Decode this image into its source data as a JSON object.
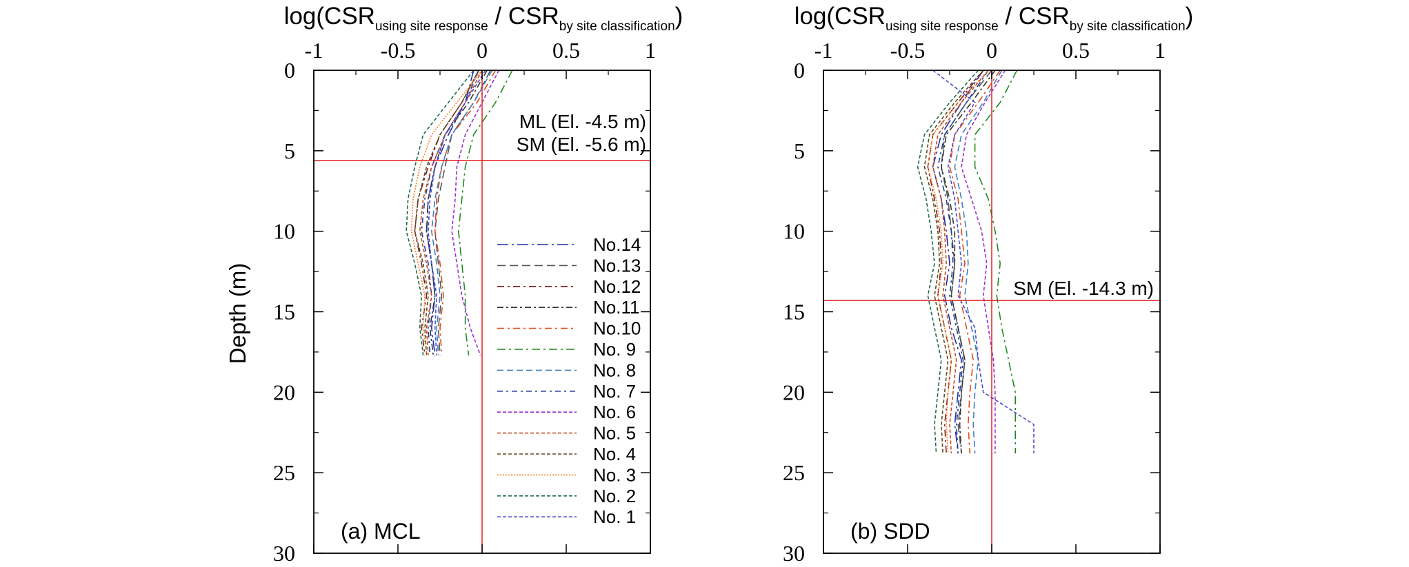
{
  "figure": {
    "ylabel": "Depth (m)",
    "title_parts": {
      "prefix": "log(CSR",
      "sub1": "using site response",
      "middle": " / CSR",
      "sub2": "by site classification",
      "suffix": ")"
    }
  },
  "series_styles": [
    {
      "name": "No.14",
      "color": "#1f2fa8",
      "dash": "16 5 3 5"
    },
    {
      "name": "No.13",
      "color": "#555555",
      "dash": "12 6"
    },
    {
      "name": "No.12",
      "color": "#7a1f1f",
      "dash": "10 5 3 5"
    },
    {
      "name": "No.11",
      "color": "#333333",
      "dash": "9 4 3 4"
    },
    {
      "name": "No.10",
      "color": "#e04a1a",
      "dash": "10 5 3 5"
    },
    {
      "name": "No. 9",
      "color": "#1f8a1f",
      "dash": "12 5 3 5"
    },
    {
      "name": "No. 8",
      "color": "#3f80c0",
      "dash": "9 5"
    },
    {
      "name": "No. 7",
      "color": "#1f3f9a",
      "dash": "8 5 3 5"
    },
    {
      "name": "No. 6",
      "color": "#9a2fd0",
      "dash": "5 3"
    },
    {
      "name": "No. 5",
      "color": "#c84a1f",
      "dash": "5 3"
    },
    {
      "name": "No. 4",
      "color": "#5a4a1f",
      "dash": "5 3"
    },
    {
      "name": "No. 3",
      "color": "#ff7a1f",
      "dash": "2 2"
    },
    {
      "name": "No. 2",
      "color": "#1f6a4a",
      "dash": "5 3"
    },
    {
      "name": "No. 1",
      "color": "#4a4ad0",
      "dash": "5 3"
    }
  ],
  "chart_data": [
    {
      "type": "line",
      "panel_label": "(a) MCL",
      "x_tick_labels": [
        "-1",
        "-0.5",
        "0",
        "0.5",
        "1"
      ],
      "y_tick_labels": [
        "0",
        "5",
        "10",
        "15",
        "20",
        "25",
        "30"
      ],
      "xlim": [
        -1,
        1
      ],
      "ylim": [
        0,
        30
      ],
      "y_inverted": true,
      "legend": [
        "No.14",
        "No.13",
        "No.12",
        "No.11",
        "No.10",
        "No. 9",
        "No. 8",
        "No. 7",
        "No. 6",
        "No. 5",
        "No. 4",
        "No. 3",
        "No. 2",
        "No. 1"
      ],
      "legend_position": "lower-right",
      "reference_lines": [
        {
          "type": "vertical",
          "x": 0
        },
        {
          "type": "horizontal",
          "y": 5.6
        }
      ],
      "annotations": [
        "ML (El. -4.5 m)",
        "SM (El. -5.6 m)"
      ],
      "depth": [
        0,
        2,
        4,
        6,
        8,
        10,
        12,
        14,
        16,
        17.7
      ],
      "series": [
        {
          "name": "No.14",
          "values": [
            -0.05,
            -0.1,
            -0.2,
            -0.28,
            -0.32,
            -0.33,
            -0.3,
            -0.28,
            -0.3,
            -0.28
          ]
        },
        {
          "name": "No.13",
          "values": [
            0.05,
            -0.05,
            -0.18,
            -0.22,
            -0.26,
            -0.28,
            -0.26,
            -0.24,
            -0.26,
            -0.25
          ]
        },
        {
          "name": "No.12",
          "values": [
            -0.02,
            -0.12,
            -0.25,
            -0.32,
            -0.38,
            -0.4,
            -0.36,
            -0.33,
            -0.36,
            -0.34
          ]
        },
        {
          "name": "No.11",
          "values": [
            0.03,
            -0.08,
            -0.22,
            -0.28,
            -0.32,
            -0.33,
            -0.3,
            -0.28,
            -0.31,
            -0.29
          ]
        },
        {
          "name": "No.10",
          "values": [
            0.08,
            -0.03,
            -0.18,
            -0.24,
            -0.27,
            -0.28,
            -0.25,
            -0.23,
            -0.25,
            -0.24
          ]
        },
        {
          "name": "No. 9",
          "values": [
            0.18,
            0.08,
            -0.05,
            -0.1,
            -0.12,
            -0.14,
            -0.12,
            -0.1,
            -0.1,
            -0.08
          ]
        },
        {
          "name": "No. 8",
          "values": [
            0.06,
            -0.05,
            -0.18,
            -0.24,
            -0.28,
            -0.3,
            -0.27,
            -0.25,
            -0.27,
            -0.26
          ]
        },
        {
          "name": "No. 7",
          "values": [
            -0.02,
            -0.1,
            -0.22,
            -0.3,
            -0.34,
            -0.36,
            -0.32,
            -0.3,
            -0.32,
            -0.31
          ]
        },
        {
          "name": "No. 6",
          "values": [
            0.1,
            0.0,
            -0.1,
            -0.15,
            -0.16,
            -0.18,
            -0.15,
            -0.12,
            -0.07,
            -0.01
          ]
        },
        {
          "name": "No. 5",
          "values": [
            0.0,
            -0.1,
            -0.22,
            -0.3,
            -0.35,
            -0.37,
            -0.33,
            -0.3,
            -0.33,
            -0.32
          ]
        },
        {
          "name": "No. 4",
          "values": [
            -0.02,
            -0.12,
            -0.25,
            -0.33,
            -0.38,
            -0.4,
            -0.35,
            -0.32,
            -0.34,
            -0.33
          ]
        },
        {
          "name": "No. 3",
          "values": [
            0.0,
            -0.15,
            -0.3,
            -0.37,
            -0.41,
            -0.42,
            -0.38,
            -0.34,
            -0.35,
            -0.33
          ]
        },
        {
          "name": "No. 2",
          "values": [
            -0.05,
            -0.2,
            -0.35,
            -0.4,
            -0.44,
            -0.45,
            -0.4,
            -0.36,
            -0.37,
            -0.35
          ]
        },
        {
          "name": "No. 1",
          "values": [
            0.02,
            -0.1,
            -0.22,
            -0.28,
            -0.31,
            -0.32,
            -0.3,
            -0.27,
            -0.28,
            -0.27
          ]
        }
      ]
    },
    {
      "type": "line",
      "panel_label": "(b) SDD",
      "x_tick_labels": [
        "-1",
        "-0.5",
        "0",
        "0.5",
        "1"
      ],
      "y_tick_labels": [
        "0",
        "5",
        "10",
        "15",
        "20",
        "25",
        "30"
      ],
      "xlim": [
        -1,
        1
      ],
      "ylim": [
        0,
        30
      ],
      "y_inverted": true,
      "reference_lines": [
        {
          "type": "vertical",
          "x": 0
        },
        {
          "type": "horizontal",
          "y": 14.3
        }
      ],
      "annotations": [
        "SM (El. -14.3 m)"
      ],
      "depth": [
        0,
        2,
        4,
        6,
        8,
        10,
        12,
        14,
        16,
        18,
        20,
        22,
        23.8
      ],
      "series": [
        {
          "name": "No.14",
          "values": [
            -0.05,
            -0.18,
            -0.3,
            -0.35,
            -0.3,
            -0.27,
            -0.25,
            -0.28,
            -0.24,
            -0.18,
            -0.2,
            -0.22,
            -0.2
          ]
        },
        {
          "name": "No.13",
          "values": [
            0.0,
            -0.15,
            -0.28,
            -0.3,
            -0.26,
            -0.24,
            -0.22,
            -0.24,
            -0.2,
            -0.16,
            -0.18,
            -0.2,
            -0.18
          ]
        },
        {
          "name": "No.12",
          "values": [
            -0.05,
            -0.2,
            -0.35,
            -0.38,
            -0.34,
            -0.31,
            -0.3,
            -0.32,
            -0.28,
            -0.24,
            -0.26,
            -0.28,
            -0.27
          ]
        },
        {
          "name": "No.11",
          "values": [
            0.02,
            -0.12,
            -0.27,
            -0.3,
            -0.25,
            -0.22,
            -0.22,
            -0.24,
            -0.2,
            -0.16,
            -0.18,
            -0.19,
            -0.18
          ]
        },
        {
          "name": "No.10",
          "values": [
            0.05,
            -0.08,
            -0.22,
            -0.25,
            -0.2,
            -0.18,
            -0.16,
            -0.19,
            -0.15,
            -0.11,
            -0.13,
            -0.14,
            -0.13
          ]
        },
        {
          "name": "No. 9",
          "values": [
            0.15,
            0.05,
            -0.1,
            -0.1,
            -0.02,
            0.02,
            0.05,
            0.03,
            0.06,
            0.1,
            0.14,
            0.14,
            0.14
          ]
        },
        {
          "name": "No. 8",
          "values": [
            0.06,
            -0.05,
            -0.18,
            -0.22,
            -0.18,
            -0.15,
            -0.14,
            -0.16,
            -0.12,
            -0.08,
            -0.1,
            -0.11,
            -0.1
          ]
        },
        {
          "name": "No. 7",
          "values": [
            -0.02,
            -0.15,
            -0.28,
            -0.32,
            -0.27,
            -0.24,
            -0.23,
            -0.25,
            -0.21,
            -0.17,
            -0.19,
            -0.21,
            -0.2
          ]
        },
        {
          "name": "No. 6",
          "values": [
            0.08,
            -0.04,
            -0.15,
            -0.18,
            -0.12,
            -0.06,
            -0.03,
            -0.05,
            -0.02,
            0.01,
            0.02,
            0.02,
            0.02
          ]
        },
        {
          "name": "No. 5",
          "values": [
            -0.02,
            -0.18,
            -0.32,
            -0.35,
            -0.3,
            -0.28,
            -0.27,
            -0.29,
            -0.25,
            -0.21,
            -0.23,
            -0.25,
            -0.24
          ]
        },
        {
          "name": "No. 4",
          "values": [
            -0.05,
            -0.22,
            -0.37,
            -0.4,
            -0.35,
            -0.32,
            -0.31,
            -0.34,
            -0.3,
            -0.26,
            -0.28,
            -0.3,
            -0.29
          ]
        },
        {
          "name": "No. 3",
          "values": [
            -0.02,
            -0.2,
            -0.35,
            -0.38,
            -0.33,
            -0.3,
            -0.29,
            -0.32,
            -0.28,
            -0.24,
            -0.26,
            -0.27,
            -0.26
          ]
        },
        {
          "name": "No. 2",
          "values": [
            -0.08,
            -0.25,
            -0.4,
            -0.44,
            -0.39,
            -0.36,
            -0.34,
            -0.38,
            -0.34,
            -0.3,
            -0.32,
            -0.34,
            -0.33
          ]
        },
        {
          "name": "No. 1",
          "values": [
            -0.35,
            -0.1,
            -0.22,
            -0.26,
            -0.22,
            -0.2,
            -0.18,
            -0.2,
            -0.1,
            -0.08,
            -0.05,
            0.25,
            0.25
          ]
        }
      ]
    }
  ]
}
